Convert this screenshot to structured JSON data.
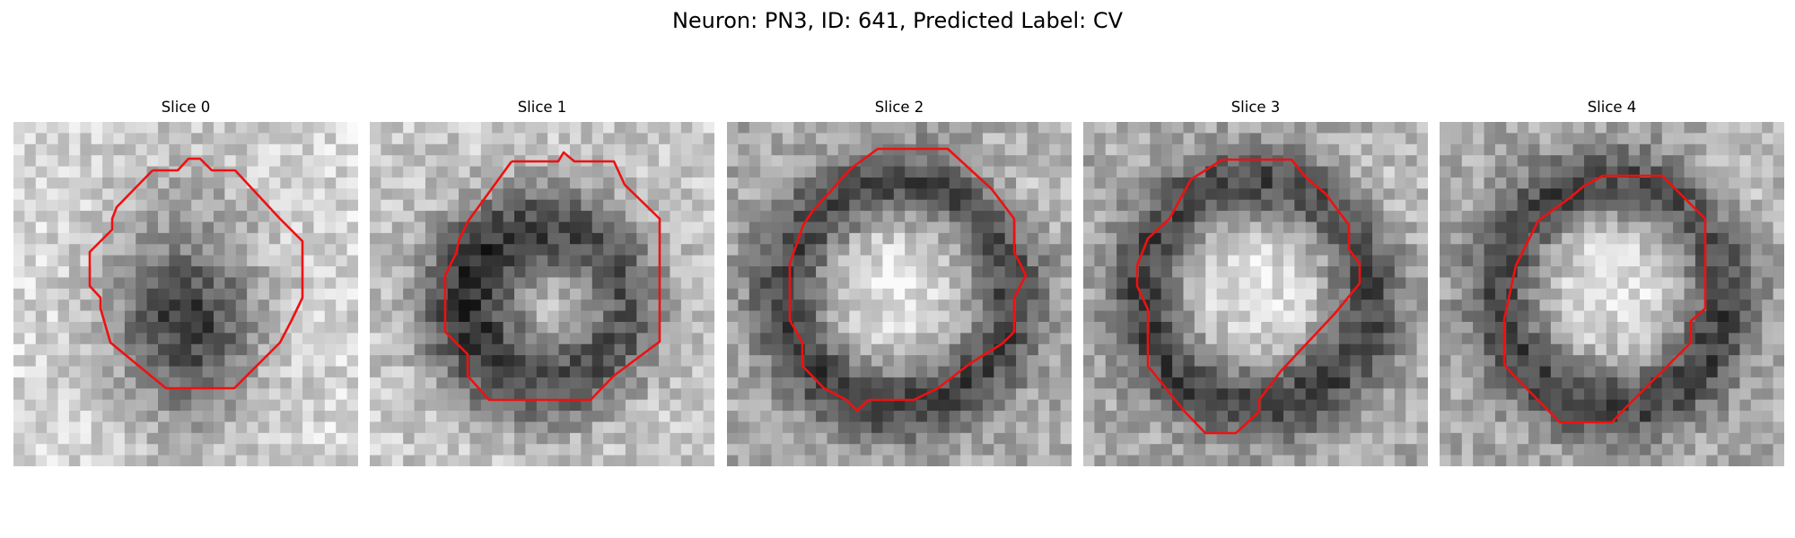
{
  "figure": {
    "title": "Neuron: PN3, ID: 641, Predicted Label: CV"
  },
  "panels": [
    {
      "title": "Slice 0",
      "pattern": "dark-core"
    },
    {
      "title": "Slice 1",
      "pattern": "dark-ring-light-right"
    },
    {
      "title": "Slice 2",
      "pattern": "light-core-dark-ring"
    },
    {
      "title": "Slice 3",
      "pattern": "light-core-dark-ring"
    },
    {
      "title": "Slice 4",
      "pattern": "light-core-dark-ring"
    }
  ],
  "colors": {
    "contour": "#ee1111",
    "background": "#ffffff"
  }
}
